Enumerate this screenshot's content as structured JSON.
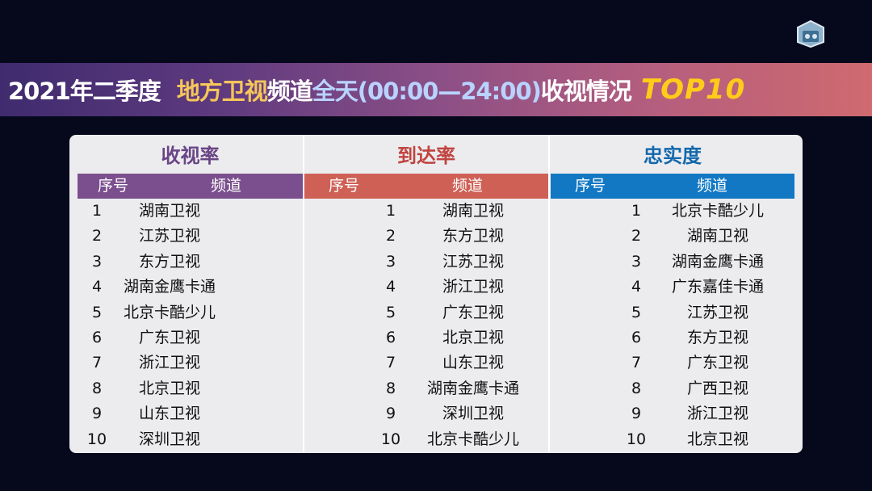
{
  "banner": {
    "part1": "2021年二季度",
    "part2": "地方卫视",
    "part3": "频道",
    "part4": "全天(00:00—24:00)",
    "part5": "收视情况",
    "part6": "TOP10"
  },
  "header_labels": {
    "no": "序号",
    "channel": "频道"
  },
  "colors": {
    "rating": "#7b4f8e",
    "reach": "#cf6055",
    "loyalty": "#1278c4"
  },
  "columns": [
    {
      "title": "收视率",
      "rows": [
        {
          "no": "1",
          "channel": "湖南卫视"
        },
        {
          "no": "2",
          "channel": "江苏卫视"
        },
        {
          "no": "3",
          "channel": "东方卫视"
        },
        {
          "no": "4",
          "channel": "湖南金鹰卡通"
        },
        {
          "no": "5",
          "channel": "北京卡酷少儿"
        },
        {
          "no": "6",
          "channel": "广东卫视"
        },
        {
          "no": "7",
          "channel": "浙江卫视"
        },
        {
          "no": "8",
          "channel": "北京卫视"
        },
        {
          "no": "9",
          "channel": "山东卫视"
        },
        {
          "no": "10",
          "channel": "深圳卫视"
        }
      ]
    },
    {
      "title": "到达率",
      "rows": [
        {
          "no": "1",
          "channel": "湖南卫视"
        },
        {
          "no": "2",
          "channel": "东方卫视"
        },
        {
          "no": "3",
          "channel": "江苏卫视"
        },
        {
          "no": "4",
          "channel": "浙江卫视"
        },
        {
          "no": "5",
          "channel": "广东卫视"
        },
        {
          "no": "6",
          "channel": "北京卫视"
        },
        {
          "no": "7",
          "channel": "山东卫视"
        },
        {
          "no": "8",
          "channel": "湖南金鹰卡通"
        },
        {
          "no": "9",
          "channel": "深圳卫视"
        },
        {
          "no": "10",
          "channel": "北京卡酷少儿"
        }
      ]
    },
    {
      "title": "忠实度",
      "rows": [
        {
          "no": "1",
          "channel": "北京卡酷少儿"
        },
        {
          "no": "2",
          "channel": "湖南卫视"
        },
        {
          "no": "3",
          "channel": "湖南金鹰卡通"
        },
        {
          "no": "4",
          "channel": "广东嘉佳卡通"
        },
        {
          "no": "5",
          "channel": "江苏卫视"
        },
        {
          "no": "6",
          "channel": "东方卫视"
        },
        {
          "no": "7",
          "channel": "广东卫视"
        },
        {
          "no": "8",
          "channel": "广西卫视"
        },
        {
          "no": "9",
          "channel": "浙江卫视"
        },
        {
          "no": "10",
          "channel": "北京卫视"
        }
      ]
    }
  ]
}
